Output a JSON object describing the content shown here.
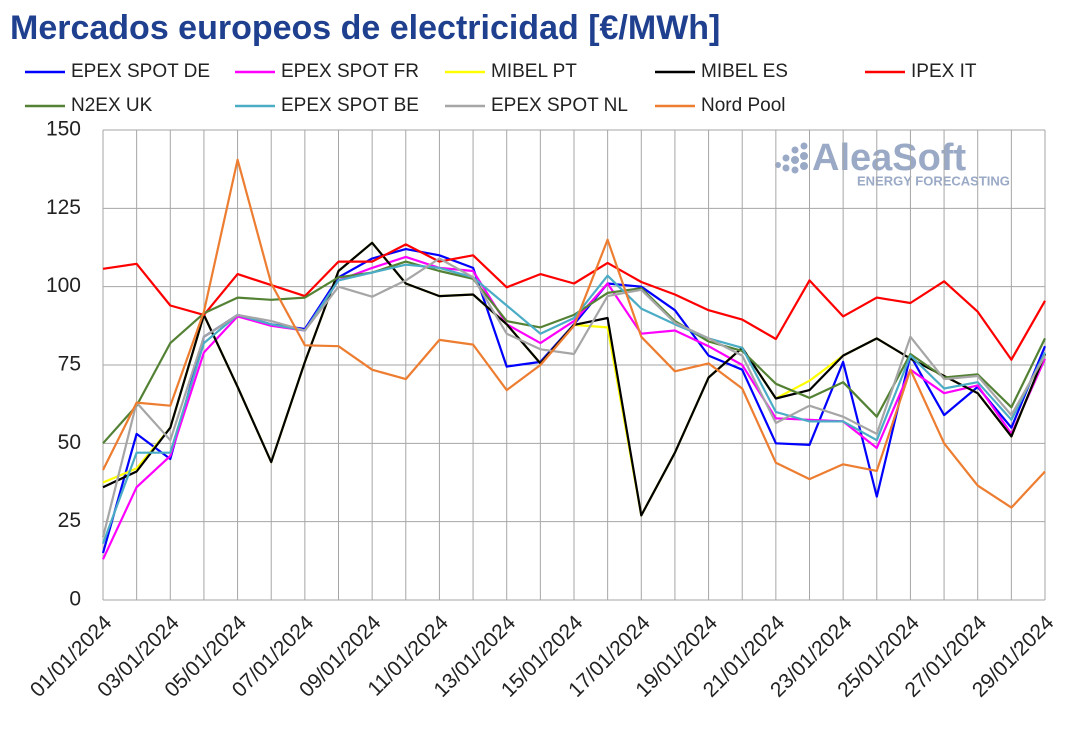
{
  "chart_data": {
    "type": "line",
    "title": "Mercados europeos de electricidad [€/MWh]",
    "watermark": {
      "name": "AleaSoft",
      "tagline": "ENERGY FORECASTING"
    },
    "categories": [
      "01/01/2024",
      null,
      "03/01/2024",
      null,
      "05/01/2024",
      null,
      "07/01/2024",
      null,
      "09/01/2024",
      null,
      "11/01/2024",
      null,
      "13/01/2024",
      null,
      "15/01/2024",
      null,
      "17/01/2024",
      null,
      "19/01/2024",
      null,
      "21/01/2024",
      null,
      "23/01/2024",
      null,
      "25/01/2024",
      null,
      "27/01/2024",
      null,
      "29/01/2024"
    ],
    "ylim": [
      0,
      150
    ],
    "yticks": [
      0,
      25,
      50,
      75,
      100,
      125,
      150
    ],
    "grid": true,
    "legend": "top",
    "series": [
      {
        "name": "EPEX SPOT DE",
        "color": "#0000ff",
        "values": [
          15,
          53,
          45,
          84,
          91,
          88,
          86.5,
          103,
          109,
          112,
          110,
          106,
          74.5,
          76,
          88,
          101,
          100,
          92.5,
          78,
          73.5,
          50,
          49.5,
          76,
          33,
          78,
          59,
          68,
          55,
          81
        ]
      },
      {
        "name": "EPEX SPOT FR",
        "color": "#ff00ff",
        "values": [
          13,
          36,
          46,
          79,
          90.5,
          87.5,
          86,
          102,
          106,
          109.5,
          106,
          105,
          88,
          82,
          89,
          101,
          85,
          86,
          81,
          75,
          58,
          57.5,
          57,
          48.5,
          73.5,
          66,
          68.5,
          53,
          77
        ]
      },
      {
        "name": "MIBEL PT",
        "color": "#ffff00",
        "values": [
          37.5,
          42,
          55,
          91,
          68,
          44,
          76,
          105,
          114,
          101,
          97,
          97.5,
          88,
          75.5,
          87.8,
          87,
          27,
          47,
          71,
          80.5,
          64.3,
          70,
          78,
          83.5,
          77,
          71.5,
          66,
          52.2,
          78.5
        ]
      },
      {
        "name": "MIBEL ES",
        "color": "#000000",
        "values": [
          36,
          41,
          55,
          91,
          68,
          44,
          76,
          105,
          114,
          101,
          97,
          97.5,
          88,
          75.5,
          87.8,
          90,
          27,
          47,
          71,
          80.5,
          64.3,
          67,
          78,
          83.5,
          77,
          71.5,
          66,
          52.2,
          78.5
        ]
      },
      {
        "name": "IPEX IT",
        "color": "#ff0000",
        "values": [
          105.7,
          107.3,
          94,
          91,
          104,
          100.5,
          97,
          108,
          108,
          113.5,
          108,
          110,
          99.8,
          104,
          101,
          107.6,
          101.5,
          97.5,
          92.5,
          89.5,
          83.3,
          102,
          90.5,
          96.5,
          94.8,
          101.7,
          92,
          76.7,
          95.5
        ]
      },
      {
        "name": "N2EX UK",
        "color": "#548235",
        "values": [
          50,
          62,
          82,
          91.5,
          96.5,
          95.8,
          96.5,
          103,
          104.5,
          108,
          105,
          102.5,
          89,
          87,
          91,
          98,
          99.5,
          89,
          82.5,
          79.5,
          69,
          64.5,
          69.5,
          58.5,
          78.5,
          71,
          72,
          61.5,
          83.5
        ]
      },
      {
        "name": "EPEX SPOT BE",
        "color": "#4bacc6",
        "values": [
          18,
          47,
          47,
          82,
          91,
          88,
          86,
          102,
          104.5,
          107,
          106,
          103,
          94,
          85,
          90,
          103.5,
          93,
          88,
          83.5,
          80.5,
          60,
          57,
          57,
          51,
          78,
          67.5,
          69.5,
          57.5,
          79
        ]
      },
      {
        "name": "EPEX SPOT NL",
        "color": "#a6a6a6",
        "values": [
          20,
          63,
          51,
          84,
          91,
          89,
          86,
          100,
          96.8,
          102,
          109,
          103,
          85,
          80,
          78.5,
          97,
          99,
          88.5,
          83.5,
          78,
          56.5,
          62,
          58.5,
          53,
          84,
          70.5,
          71.5,
          59,
          78
        ]
      },
      {
        "name": "Nord Pool",
        "color": "#ed7d31",
        "values": [
          41.5,
          63,
          62,
          92,
          140.5,
          101,
          81.3,
          81,
          73.5,
          70.5,
          83,
          81.5,
          67,
          75,
          87.5,
          115,
          84,
          73,
          75.5,
          67.5,
          43.8,
          38.6,
          43.3,
          41.2,
          73.5,
          50,
          36.5,
          29.5,
          41
        ]
      }
    ]
  }
}
